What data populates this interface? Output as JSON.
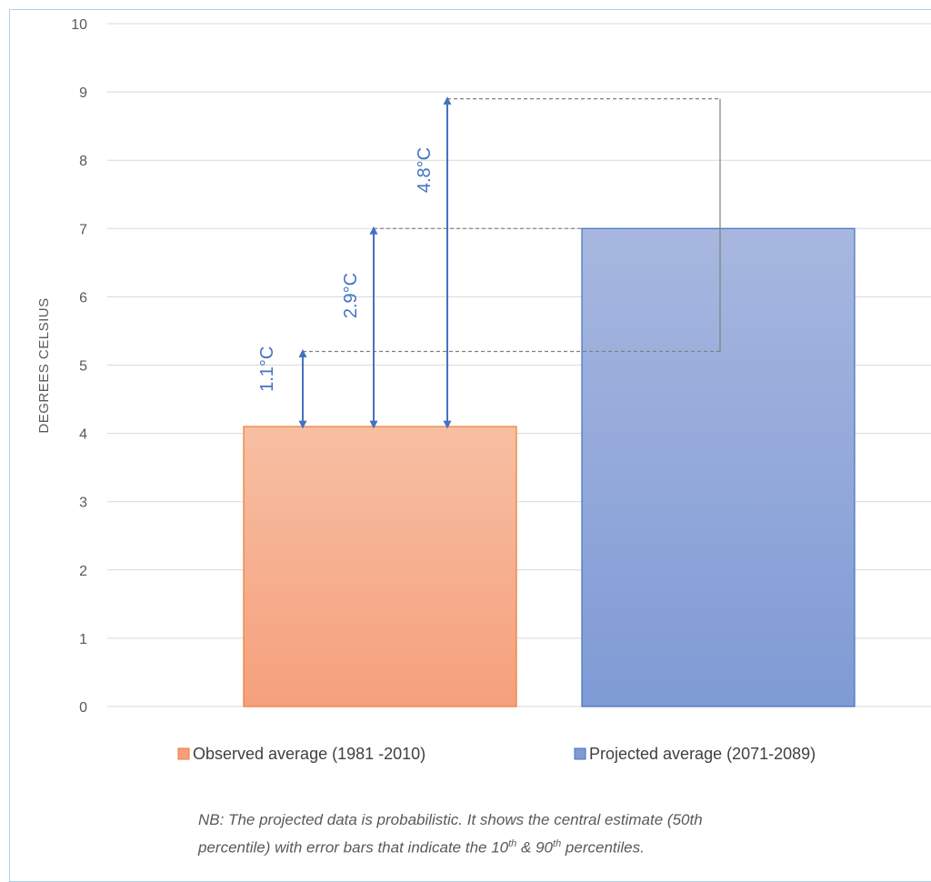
{
  "colors": {
    "observed_fill_top": "#f7bfa3",
    "observed_fill_bottom": "#f5a07c",
    "observed_stroke": "#ed7d31",
    "projected_fill_top": "#a7b7df",
    "projected_fill_bottom": "#7f9bd5",
    "projected_stroke": "#4472c4",
    "annotation": "#4472c4",
    "grid": "#d9d9d9"
  },
  "chart_data": {
    "type": "bar",
    "title": "",
    "xlabel": "",
    "ylabel": "DEGREES CELSIUS",
    "ylim": [
      0,
      10
    ],
    "yticks": [
      0,
      1,
      2,
      3,
      4,
      5,
      6,
      7,
      8,
      9,
      10
    ],
    "grid": true,
    "legend_position": "bottom",
    "series": [
      {
        "name": "Observed average (1981 -2010)",
        "value": 4.1
      },
      {
        "name": "Projected average (2071-2089)",
        "value": 7.0,
        "error_low": 5.2,
        "error_high": 8.9
      }
    ],
    "annotations": [
      {
        "label": "1.1°C",
        "from": 4.1,
        "to": 5.2
      },
      {
        "label": "2.9°C",
        "from": 4.1,
        "to": 7.0
      },
      {
        "label": "4.8°C",
        "from": 4.1,
        "to": 8.9
      }
    ]
  },
  "note": {
    "line1": "NB: The projected data is probabilistic. It shows the central estimate (50th",
    "line2_a": "percentile) with error bars that indicate the 10",
    "sup1": "th",
    "line2_b": " & 90",
    "sup2": "th",
    "line2_c": " percentiles."
  }
}
